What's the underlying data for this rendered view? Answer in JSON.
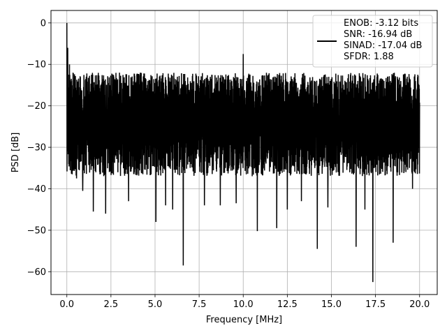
{
  "chart_data": {
    "type": "line",
    "title": "",
    "xlabel": "Frequency [MHz]",
    "ylabel": "PSD [dB]",
    "xlim": [
      -0.9,
      21.0
    ],
    "ylim": [
      -65.5,
      3.0
    ],
    "x_ticks": [
      0.0,
      2.5,
      5.0,
      7.5,
      10.0,
      12.5,
      15.0,
      17.5,
      20.0
    ],
    "x_tick_labels": [
      "0.0",
      "2.5",
      "5.0",
      "7.5",
      "10.0",
      "12.5",
      "15.0",
      "17.5",
      "20.0"
    ],
    "y_ticks": [
      0,
      -10,
      -20,
      -30,
      -40,
      -50,
      -60
    ],
    "y_tick_labels": [
      "0",
      "−10",
      "−20",
      "−30",
      "−40",
      "−50",
      "−60"
    ],
    "grid": true,
    "legend_position": "top-right",
    "legend": {
      "lines": [
        "ENOB: -3.12 bits",
        "SNR: -16.94 dB",
        "SINAD: -17.04 dB",
        "SFDR: 1.88"
      ]
    },
    "series": [
      {
        "color": "#000000",
        "x_range": [
          0.0,
          20.0
        ],
        "noise_floor_db": -24,
        "noise_band_db": [
          -37,
          -12
        ],
        "peaks": [
          {
            "x": 0.0,
            "y": 0
          },
          {
            "x": 0.05,
            "y": -6
          },
          {
            "x": 0.15,
            "y": -10
          },
          {
            "x": 0.35,
            "y": -12
          },
          {
            "x": 10.0,
            "y": -7.5
          }
        ],
        "dips": [
          {
            "x": 0.3,
            "y": -36.5
          },
          {
            "x": 0.55,
            "y": -37.5
          },
          {
            "x": 0.9,
            "y": -40.5
          },
          {
            "x": 1.5,
            "y": -45.5
          },
          {
            "x": 2.2,
            "y": -46
          },
          {
            "x": 3.5,
            "y": -43
          },
          {
            "x": 5.05,
            "y": -48
          },
          {
            "x": 5.6,
            "y": -44
          },
          {
            "x": 6.0,
            "y": -45
          },
          {
            "x": 6.6,
            "y": -58.5
          },
          {
            "x": 7.8,
            "y": -44
          },
          {
            "x": 8.7,
            "y": -44
          },
          {
            "x": 9.6,
            "y": -43.5
          },
          {
            "x": 10.8,
            "y": -50.2
          },
          {
            "x": 11.9,
            "y": -49.5
          },
          {
            "x": 12.5,
            "y": -45
          },
          {
            "x": 13.3,
            "y": -43
          },
          {
            "x": 14.2,
            "y": -54.5
          },
          {
            "x": 14.8,
            "y": -44.5
          },
          {
            "x": 16.4,
            "y": -54
          },
          {
            "x": 16.9,
            "y": -45
          },
          {
            "x": 17.35,
            "y": -62.5
          },
          {
            "x": 18.5,
            "y": -53
          },
          {
            "x": 19.6,
            "y": -40
          }
        ]
      }
    ]
  }
}
